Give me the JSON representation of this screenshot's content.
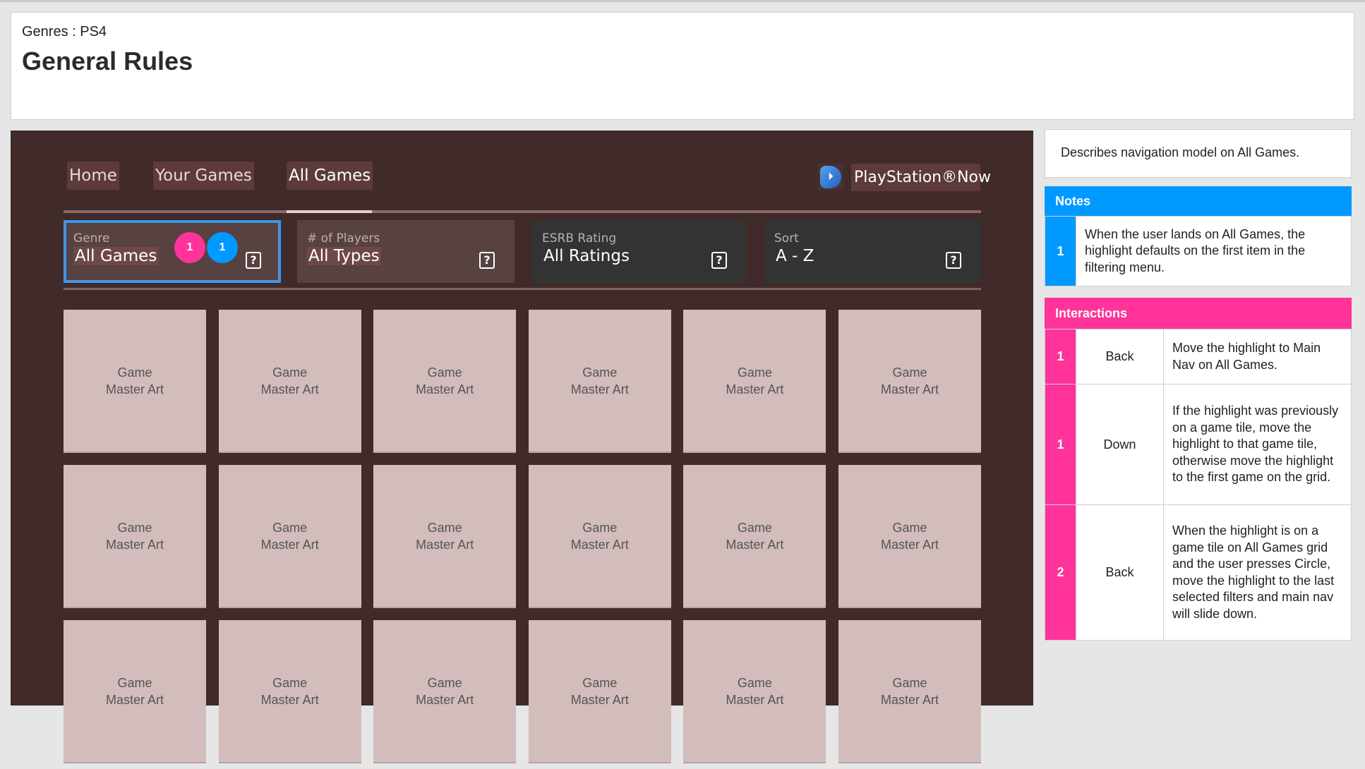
{
  "header": {
    "breadcrumb": "Genres : PS4",
    "title": "General Rules"
  },
  "ui": {
    "nav": [
      {
        "label": "Home"
      },
      {
        "label": "Your Games"
      },
      {
        "label": "All Games",
        "active": true
      }
    ],
    "ps_now": {
      "label": "PlayStation®Now",
      "icon": "playstation-logo-icon"
    },
    "filters": [
      {
        "label": "Genre",
        "value": "All Games",
        "focused": true
      },
      {
        "label": "# of Players",
        "value": "All Types"
      },
      {
        "label": "ESRB Rating",
        "value": "All Ratings"
      },
      {
        "label": "Sort",
        "value": "A - Z"
      }
    ],
    "help_icon": "?",
    "badges": [
      {
        "text": "1",
        "color": "#ff3399"
      },
      {
        "text": "1",
        "color": "#0099ff"
      }
    ],
    "tile_line1": "Game",
    "tile_line2": "Master Art"
  },
  "annotations": {
    "description": "Describes navigation model on All Games.",
    "notes_title": "Notes",
    "notes": [
      {
        "num": "1",
        "text": "When the user lands on All Games, the highlight defaults on the first item in the filtering menu."
      }
    ],
    "interactions_title": "Interactions",
    "interactions": [
      {
        "num": "1",
        "action": "Back",
        "text": "Move the highlight to Main Nav on All Games."
      },
      {
        "num": "1",
        "action": "Down",
        "text": "If the highlight was previously on a game tile, move the highlight to that game tile, otherwise move the highlight to the first game on the grid."
      },
      {
        "num": "2",
        "action": "Back",
        "text": "When the highlight is on a game tile on All Games grid and the user presses Circle, move the highlight to the last selected filters and main nav will slide down."
      }
    ],
    "colors": {
      "notes": "#0099ff",
      "interactions": "#ff3399",
      "focus": "#3f95e8"
    }
  }
}
